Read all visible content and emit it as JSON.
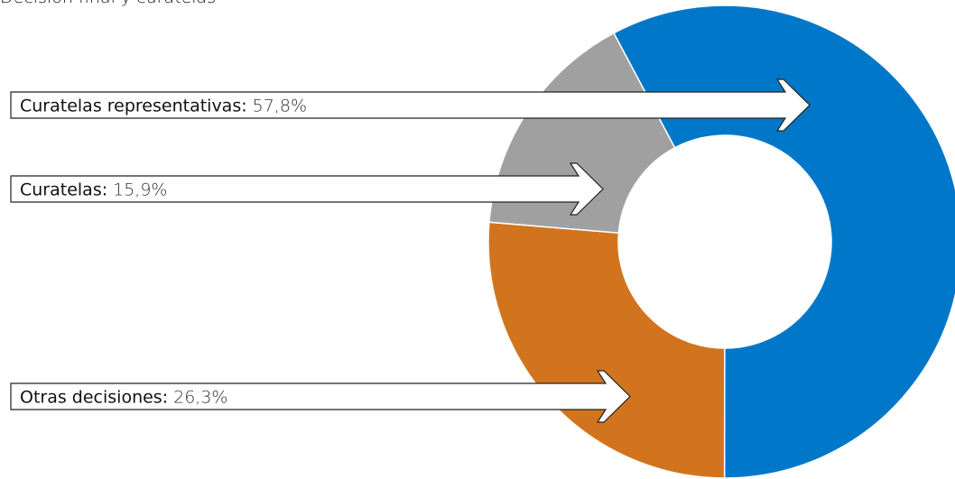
{
  "chart_data": {
    "type": "donut",
    "title": "Decisión final y curatelas",
    "categories": [
      "Curatelas representativas:",
      "Otras decisiones:",
      "Curatelas:"
    ],
    "values": [
      57.8,
      26.3,
      15.9
    ],
    "value_labels": [
      "57,8%",
      "26,3%",
      "15,9%"
    ],
    "colors": [
      "#0077c8",
      "#d2741e",
      "#a0a0a0"
    ]
  }
}
